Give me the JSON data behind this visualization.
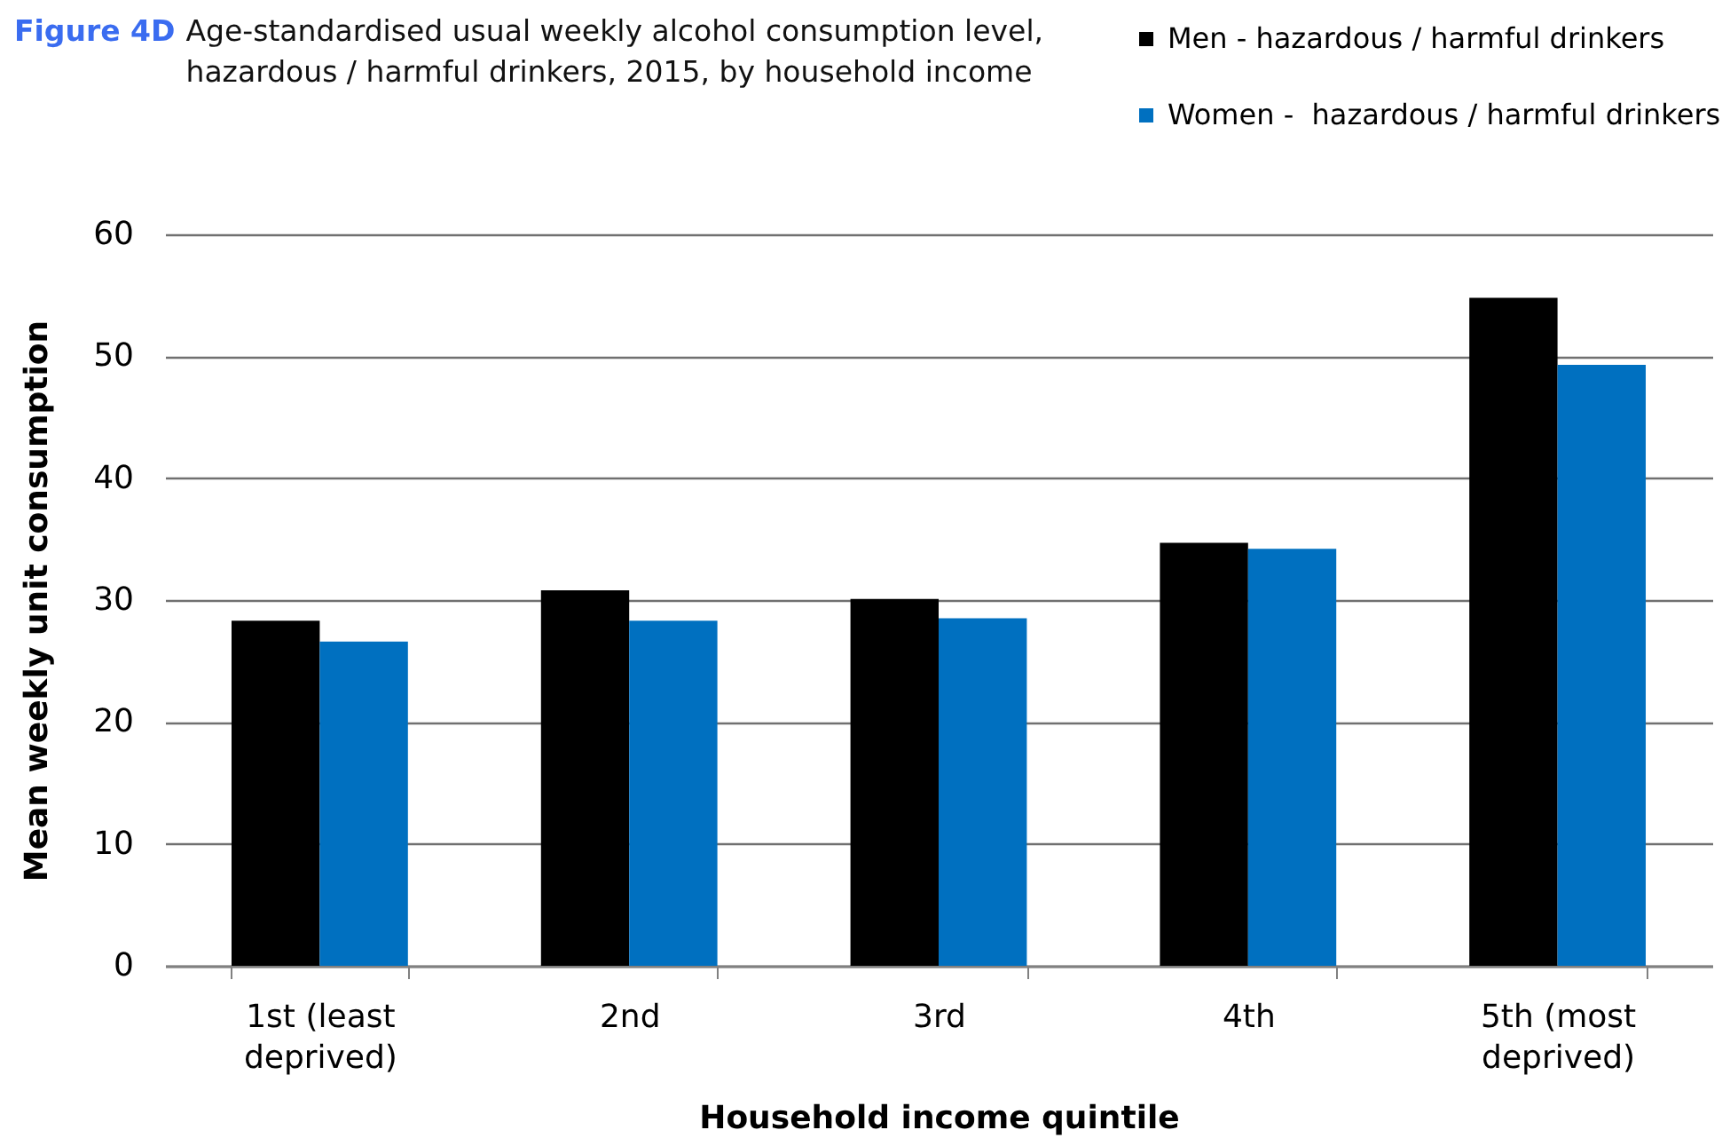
{
  "chart_data": {
    "type": "bar",
    "annotations": [
      "Figure 4D"
    ],
    "title": "Age-standardised usual weekly alcohol consumption level, hazardous / harmful drinkers, 2015, by household income",
    "xlabel": "Household income quintile",
    "ylabel": "Mean weekly unit consumption",
    "categories": [
      "1st (least deprived)",
      "2nd",
      "3rd",
      "4th",
      "5th (most deprived)"
    ],
    "series": [
      {
        "name": "Men - hazardous / harmful drinkers",
        "color": "#000000",
        "values": [
          28.3,
          30.8,
          30.1,
          34.7,
          54.8
        ]
      },
      {
        "name": "Women -  hazardous / harmful drinkers",
        "color": "#0070c0",
        "values": [
          26.6,
          28.3,
          28.5,
          34.2,
          49.3
        ]
      }
    ],
    "ylim": [
      0,
      60
    ],
    "yticks": [
      0,
      10,
      20,
      30,
      40,
      50,
      60
    ],
    "grid": "y",
    "legend": "top right"
  }
}
